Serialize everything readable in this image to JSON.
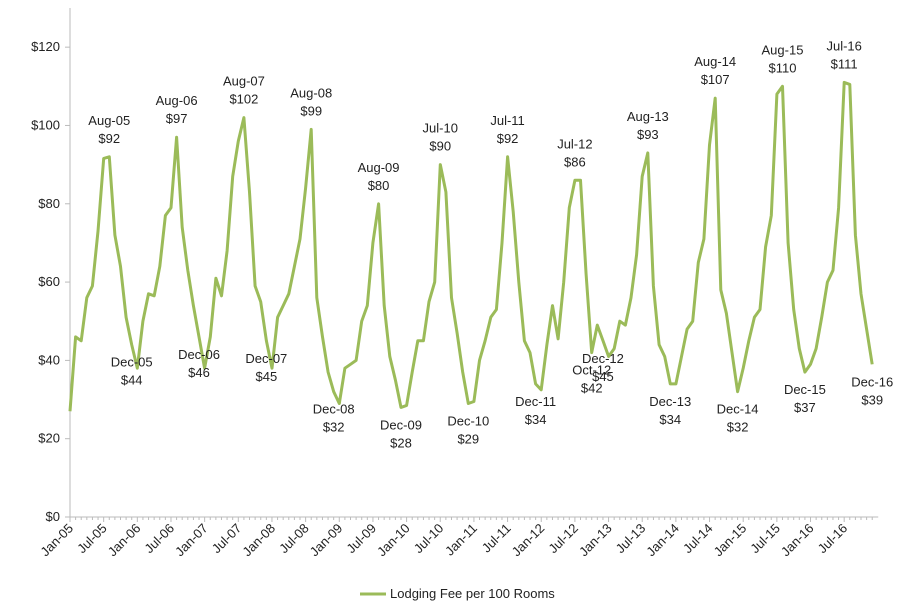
{
  "chart_data": {
    "type": "line",
    "categories": [
      "Jan-05",
      null,
      null,
      null,
      null,
      null,
      "Jul-05",
      null,
      null,
      null,
      null,
      null,
      "Jan-06",
      null,
      null,
      null,
      null,
      null,
      "Jul-06",
      null,
      null,
      null,
      null,
      null,
      "Jan-07",
      null,
      null,
      null,
      null,
      null,
      "Jul-07",
      null,
      null,
      null,
      null,
      null,
      "Jan-08",
      null,
      null,
      null,
      null,
      null,
      "Jul-08",
      null,
      null,
      null,
      null,
      null,
      "Jan-09",
      null,
      null,
      null,
      null,
      null,
      "Jul-09",
      null,
      null,
      null,
      null,
      null,
      "Jan-10",
      null,
      null,
      null,
      null,
      null,
      "Jul-10",
      null,
      null,
      null,
      null,
      null,
      "Jan-11",
      null,
      null,
      null,
      null,
      null,
      "Jul-11",
      null,
      null,
      null,
      null,
      null,
      "Jan-12",
      null,
      null,
      null,
      null,
      null,
      "Jul-12",
      null,
      null,
      null,
      null,
      null,
      "Jan-13",
      null,
      null,
      null,
      null,
      null,
      "Jul-13",
      null,
      null,
      null,
      null,
      null,
      "Jan-14",
      null,
      null,
      null,
      null,
      null,
      "Jul-14",
      null,
      null,
      null,
      null,
      null,
      "Jan-15",
      null,
      null,
      null,
      null,
      null,
      "Jul-15",
      null,
      null,
      null,
      null,
      null,
      "Jan-16",
      null,
      null,
      null,
      null,
      null,
      "Jul-16",
      null,
      null,
      null,
      null,
      null
    ],
    "series": [
      {
        "name": "Lodging Fee per 100 Rooms",
        "color": "#9bbb59",
        "values": [
          27,
          46,
          45,
          56,
          59,
          73,
          91.6,
          92,
          72,
          64,
          51,
          44,
          38,
          50,
          57,
          56.5,
          64,
          77,
          79,
          97,
          74,
          63,
          54,
          46,
          38,
          46,
          61,
          56.5,
          68,
          87,
          96,
          102,
          83,
          59,
          55,
          45,
          38,
          51,
          54,
          57,
          64,
          71,
          84,
          99,
          56,
          46,
          37,
          32,
          29,
          38,
          39,
          40,
          50,
          54,
          70,
          80,
          54,
          41,
          35,
          28,
          28.5,
          37,
          45,
          45,
          55,
          60,
          90,
          83,
          56,
          47,
          37,
          29,
          29.5,
          40,
          45,
          51,
          53,
          70,
          92,
          78,
          60,
          45,
          42,
          34,
          32.5,
          44,
          54,
          45.5,
          60,
          79,
          86,
          86,
          62,
          42,
          49,
          45,
          41,
          43,
          50,
          49,
          56,
          67,
          87,
          93,
          59,
          44,
          41,
          34,
          34,
          41,
          48,
          50,
          65,
          71,
          95,
          107,
          58,
          52,
          42,
          32,
          38,
          45,
          51,
          53,
          69,
          77,
          108,
          110,
          70,
          53,
          43,
          37,
          39,
          43,
          51,
          60,
          63,
          79,
          111,
          110.5,
          72,
          57,
          48,
          39
        ],
        "point_labels": [
          null,
          null,
          null,
          null,
          null,
          null,
          null,
          "Aug-05",
          null,
          null,
          null,
          "Dec-05",
          null,
          null,
          null,
          null,
          null,
          null,
          null,
          "Aug-06",
          null,
          null,
          null,
          "Dec-06",
          null,
          null,
          null,
          null,
          null,
          null,
          null,
          "Aug-07",
          null,
          null,
          null,
          "Dec-07",
          null,
          null,
          null,
          null,
          null,
          null,
          null,
          "Aug-08",
          null,
          null,
          null,
          "Dec-08",
          null,
          null,
          null,
          null,
          null,
          null,
          null,
          "Aug-09",
          null,
          null,
          null,
          "Dec-09",
          null,
          null,
          null,
          null,
          null,
          null,
          "Jul-10",
          null,
          null,
          null,
          null,
          "Dec-10",
          null,
          null,
          null,
          null,
          null,
          null,
          "Jul-11",
          null,
          null,
          null,
          null,
          "Dec-11",
          null,
          null,
          null,
          null,
          null,
          null,
          "Jul-12",
          null,
          null,
          "Oct-12",
          null,
          "Dec-12",
          null,
          null,
          null,
          null,
          null,
          null,
          null,
          "Aug-13",
          null,
          null,
          null,
          "Dec-13",
          null,
          null,
          null,
          null,
          null,
          null,
          null,
          "Aug-14",
          null,
          null,
          null,
          "Dec-14",
          null,
          null,
          null,
          null,
          null,
          null,
          null,
          "Aug-15",
          null,
          null,
          null,
          "Dec-15",
          null,
          null,
          null,
          null,
          null,
          null,
          "Jul-16",
          null,
          null,
          null,
          null,
          "Dec-16"
        ],
        "value_labels": [
          null,
          null,
          null,
          null,
          null,
          null,
          null,
          "$92",
          null,
          null,
          null,
          "$44",
          null,
          null,
          null,
          null,
          null,
          null,
          null,
          "$97",
          null,
          null,
          null,
          "$46",
          null,
          null,
          null,
          null,
          null,
          null,
          null,
          "$102",
          null,
          null,
          null,
          "$45",
          null,
          null,
          null,
          null,
          null,
          null,
          null,
          "$99",
          null,
          null,
          null,
          "$32",
          null,
          null,
          null,
          null,
          null,
          null,
          null,
          "$80",
          null,
          null,
          null,
          "$28",
          null,
          null,
          null,
          null,
          null,
          null,
          "$90",
          null,
          null,
          null,
          null,
          "$29",
          null,
          null,
          null,
          null,
          null,
          null,
          "$92",
          null,
          null,
          null,
          null,
          "$34",
          null,
          null,
          null,
          null,
          null,
          null,
          "$86",
          null,
          null,
          "$42",
          null,
          "$45",
          null,
          null,
          null,
          null,
          null,
          null,
          null,
          "$93",
          null,
          null,
          null,
          "$34",
          null,
          null,
          null,
          null,
          null,
          null,
          null,
          "$107",
          null,
          null,
          null,
          "$32",
          null,
          null,
          null,
          null,
          null,
          null,
          null,
          "$110",
          null,
          null,
          null,
          "$37",
          null,
          null,
          null,
          null,
          null,
          null,
          "$111",
          null,
          null,
          null,
          null,
          "$39"
        ]
      }
    ],
    "ylim": [
      0,
      130
    ],
    "yticks": [
      {
        "value": 0,
        "label": "$0"
      },
      {
        "value": 20,
        "label": "$20"
      },
      {
        "value": 40,
        "label": "$40"
      },
      {
        "value": 60,
        "label": "$60"
      },
      {
        "value": 80,
        "label": "$80"
      },
      {
        "value": 100,
        "label": "$100"
      },
      {
        "value": 120,
        "label": "$120"
      }
    ],
    "legend": "bottom"
  }
}
